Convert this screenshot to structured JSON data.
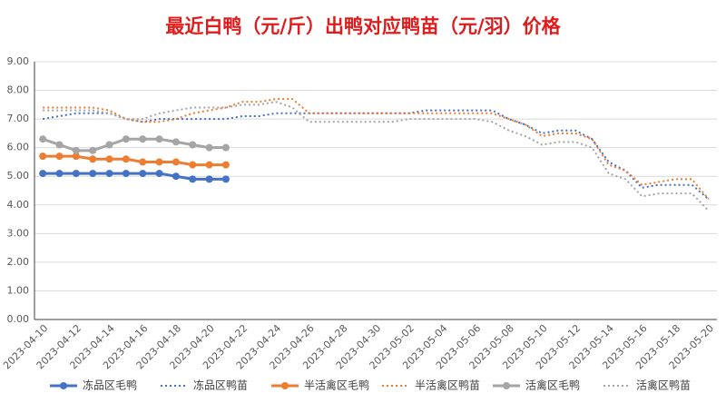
{
  "chart_data": {
    "type": "line",
    "title": "最近白鸭（元/斤）出鸭对应鸭苗（元/羽）价格",
    "categories": [
      "2023-04-10",
      null,
      "2023-04-12",
      null,
      "2023-04-14",
      null,
      "2023-04-16",
      null,
      "2023-04-18",
      null,
      "2023-04-20",
      null,
      "2023-04-22",
      null,
      "2023-04-24",
      null,
      "2023-04-26",
      null,
      "2023-04-28",
      null,
      "2023-04-30",
      null,
      "2023-05-02",
      null,
      "2023-05-04",
      null,
      "2023-05-06",
      null,
      "2023-05-08",
      null,
      "2023-05-10",
      null,
      "2023-05-12",
      null,
      "2023-05-14",
      null,
      "2023-05-16",
      null,
      "2023-05-18",
      null,
      "2023-05-20"
    ],
    "ylim": [
      0,
      9
    ],
    "yticks": [
      {
        "value": 0,
        "label": "0.00"
      },
      {
        "value": 1,
        "label": "1.00"
      },
      {
        "value": 2,
        "label": "2.00"
      },
      {
        "value": 3,
        "label": "3.00"
      },
      {
        "value": 4,
        "label": "4.00"
      },
      {
        "value": 5,
        "label": "5.00"
      },
      {
        "value": 6,
        "label": "6.00"
      },
      {
        "value": 7,
        "label": "7.00"
      },
      {
        "value": 8,
        "label": "8.00"
      },
      {
        "value": 9,
        "label": "9.00"
      }
    ],
    "grid": true,
    "legend": "bottom",
    "series": [
      {
        "name": "冻品区毛鸭",
        "color": "#4472c4",
        "line_style": "solid",
        "markers": true,
        "values": [
          5.1,
          5.1,
          5.1,
          5.1,
          5.1,
          5.1,
          5.1,
          5.1,
          5.0,
          4.9,
          4.9,
          4.9,
          null,
          null,
          null,
          null,
          null,
          null,
          null,
          null,
          null,
          null,
          null,
          null,
          null,
          null,
          null,
          null,
          null,
          null,
          null,
          null,
          null,
          null,
          null,
          null,
          null,
          null,
          null,
          null,
          null
        ]
      },
      {
        "name": "冻品区鸭苗",
        "color": "#4472c4",
        "line_style": "dotted",
        "markers": false,
        "values": [
          7.0,
          7.1,
          7.2,
          7.2,
          7.2,
          7.0,
          6.9,
          7.0,
          7.0,
          7.0,
          7.0,
          7.0,
          7.1,
          7.1,
          7.2,
          7.2,
          7.2,
          7.2,
          7.2,
          7.2,
          7.2,
          7.2,
          7.2,
          7.3,
          7.3,
          7.3,
          7.3,
          7.3,
          7.0,
          6.8,
          6.5,
          6.6,
          6.6,
          6.3,
          5.5,
          5.2,
          4.6,
          4.7,
          4.7,
          4.7,
          4.2
        ]
      },
      {
        "name": "半活禽区毛鸭",
        "color": "#ed7d31",
        "line_style": "solid",
        "markers": true,
        "values": [
          5.7,
          5.7,
          5.7,
          5.6,
          5.6,
          5.6,
          5.5,
          5.5,
          5.5,
          5.4,
          5.4,
          5.4,
          null,
          null,
          null,
          null,
          null,
          null,
          null,
          null,
          null,
          null,
          null,
          null,
          null,
          null,
          null,
          null,
          null,
          null,
          null,
          null,
          null,
          null,
          null,
          null,
          null,
          null,
          null,
          null,
          null
        ]
      },
      {
        "name": "半活禽区鸭苗",
        "color": "#ed7d31",
        "line_style": "dotted",
        "markers": false,
        "values": [
          7.4,
          7.4,
          7.4,
          7.4,
          7.3,
          7.0,
          6.9,
          6.9,
          7.0,
          7.2,
          7.3,
          7.4,
          7.6,
          7.6,
          7.7,
          7.7,
          7.2,
          7.2,
          7.2,
          7.2,
          7.2,
          7.2,
          7.2,
          7.2,
          7.2,
          7.2,
          7.2,
          7.2,
          7.0,
          6.8,
          6.4,
          6.5,
          6.5,
          6.3,
          5.4,
          5.2,
          4.7,
          4.8,
          4.9,
          4.9,
          4.2
        ]
      },
      {
        "name": "活禽区毛鸭",
        "color": "#a5a5a5",
        "line_style": "solid",
        "markers": true,
        "values": [
          6.3,
          6.1,
          5.9,
          5.9,
          6.1,
          6.3,
          6.3,
          6.3,
          6.2,
          6.1,
          6.0,
          6.0,
          null,
          null,
          null,
          null,
          null,
          null,
          null,
          null,
          null,
          null,
          null,
          null,
          null,
          null,
          null,
          null,
          null,
          null,
          null,
          null,
          null,
          null,
          null,
          null,
          null,
          null,
          null,
          null,
          null
        ]
      },
      {
        "name": "活禽区鸭苗",
        "color": "#a5a5a5",
        "line_style": "dotted",
        "markers": false,
        "values": [
          7.3,
          7.3,
          7.3,
          7.3,
          7.2,
          7.0,
          7.0,
          7.2,
          7.3,
          7.4,
          7.4,
          7.4,
          7.5,
          7.5,
          7.6,
          7.4,
          6.9,
          6.9,
          6.9,
          6.9,
          6.9,
          6.9,
          7.0,
          7.0,
          7.0,
          7.0,
          7.0,
          6.9,
          6.6,
          6.4,
          6.1,
          6.2,
          6.2,
          6.0,
          5.1,
          4.9,
          4.3,
          4.4,
          4.4,
          4.4,
          3.8
        ]
      }
    ]
  }
}
